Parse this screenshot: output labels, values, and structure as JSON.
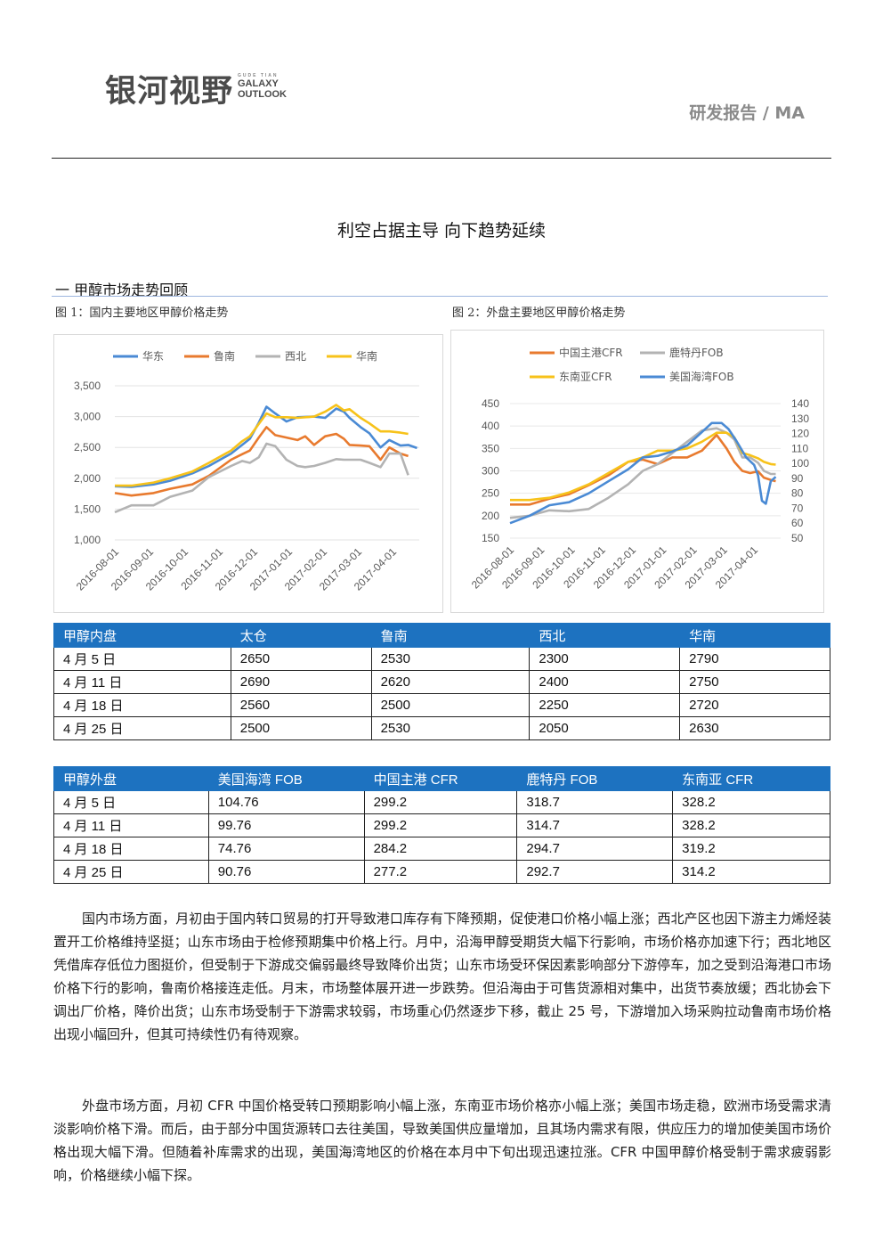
{
  "header": {
    "logo_cn": "银河视野",
    "logo_en_small": "GUDE TIAN",
    "logo_en_1": "GALAXY",
    "logo_en_2": "OUTLOOK",
    "report_tag": "研发报告 / MA"
  },
  "doc": {
    "title": "利空占据主导  向下趋势延续",
    "section_heading": "一  甲醇市场走势回顾",
    "fig1_caption": "图 1：国内主要地区甲醇价格走势",
    "fig2_caption": "图 2：外盘主要地区甲醇价格走势"
  },
  "colors": {
    "blue": "#4a8ad4",
    "orange": "#e87a2e",
    "gray": "#b3b3b3",
    "yellow": "#f7c21a",
    "table_header": "#1d72c0"
  },
  "chart_data": [
    {
      "type": "line",
      "legend": [
        "华东",
        "鲁南",
        "西北",
        "华南"
      ],
      "legend_position": "top",
      "x_ticks": [
        "2016-08-01",
        "2016-09-01",
        "2016-10-01",
        "2016-11-01",
        "2016-12-01",
        "2017-01-01",
        "2017-02-01",
        "2017-03-01",
        "2017-04-01"
      ],
      "y_ticks": [
        "1,000",
        "1,500",
        "2,000",
        "2,500",
        "3,000",
        "3,500"
      ],
      "ylim": [
        1000,
        3500
      ],
      "xlim": [
        0,
        275
      ],
      "series": [
        {
          "name": "华东",
          "x": [
            0,
            15,
            35,
            50,
            70,
            85,
            105,
            115,
            122,
            130,
            137,
            145,
            155,
            165,
            180,
            190,
            200,
            207,
            212,
            222,
            230,
            240,
            248,
            258,
            265,
            273
          ],
          "values": [
            1870,
            1860,
            1900,
            1960,
            2080,
            2200,
            2400,
            2540,
            2640,
            2900,
            3160,
            3050,
            2920,
            2990,
            3000,
            2980,
            3130,
            3080,
            2980,
            2830,
            2730,
            2500,
            2620,
            2530,
            2540,
            2490
          ]
        },
        {
          "name": "鲁南",
          "x": [
            0,
            15,
            35,
            50,
            70,
            85,
            105,
            115,
            122,
            130,
            137,
            145,
            155,
            165,
            172,
            180,
            190,
            200,
            207,
            212,
            222,
            230,
            240,
            248,
            258,
            265
          ],
          "values": [
            1760,
            1720,
            1760,
            1830,
            1900,
            2040,
            2300,
            2390,
            2450,
            2660,
            2830,
            2700,
            2660,
            2620,
            2680,
            2540,
            2680,
            2720,
            2640,
            2540,
            2530,
            2520,
            2300,
            2500,
            2400,
            2360
          ]
        },
        {
          "name": "西北",
          "x": [
            0,
            15,
            35,
            50,
            70,
            85,
            105,
            115,
            122,
            130,
            137,
            145,
            155,
            165,
            172,
            180,
            190,
            200,
            207,
            212,
            222,
            230,
            240,
            248,
            258,
            265
          ],
          "values": [
            1450,
            1560,
            1560,
            1700,
            1800,
            2020,
            2200,
            2280,
            2250,
            2340,
            2560,
            2520,
            2300,
            2200,
            2180,
            2200,
            2250,
            2310,
            2300,
            2300,
            2300,
            2250,
            2180,
            2400,
            2400,
            2050
          ]
        },
        {
          "name": "华南",
          "x": [
            0,
            15,
            35,
            50,
            70,
            85,
            105,
            115,
            122,
            130,
            137,
            145,
            155,
            165,
            180,
            190,
            200,
            207,
            212,
            222,
            230,
            240,
            248,
            258,
            265
          ],
          "values": [
            1880,
            1880,
            1930,
            2000,
            2110,
            2250,
            2450,
            2600,
            2680,
            2880,
            3050,
            2990,
            2990,
            2980,
            3000,
            3080,
            3190,
            3100,
            3120,
            2980,
            2890,
            2760,
            2760,
            2740,
            2720
          ]
        }
      ]
    },
    {
      "type": "line",
      "legend": [
        "中国主港CFR",
        "鹿特丹FOB",
        "东南亚CFR",
        "美国海湾FOB"
      ],
      "legend_position": "top",
      "x_ticks": [
        "2016-08-01",
        "2016-09-01",
        "2016-10-01",
        "2016-11-01",
        "2016-12-01",
        "2017-01-01",
        "2017-02-01",
        "2017-03-01",
        "2017-04-01"
      ],
      "y_ticks_left": [
        "150",
        "200",
        "250",
        "300",
        "350",
        "400",
        "450"
      ],
      "y_ticks_right": [
        "50",
        "60",
        "70",
        "80",
        "90",
        "100",
        "110",
        "120",
        "130",
        "140"
      ],
      "ylim_left": [
        150,
        450
      ],
      "ylim_right": [
        50,
        140
      ],
      "xlim": [
        0,
        275
      ],
      "series": [
        {
          "name": "中国主港CFR",
          "axis": "left",
          "x": [
            0,
            20,
            40,
            60,
            80,
            100,
            120,
            135,
            150,
            165,
            180,
            195,
            210,
            220,
            228,
            236,
            244,
            252,
            258,
            265,
            270
          ],
          "values": [
            225,
            225,
            238,
            248,
            268,
            290,
            320,
            325,
            315,
            330,
            330,
            345,
            380,
            350,
            320,
            300,
            295,
            299,
            285,
            280,
            277
          ]
        },
        {
          "name": "鹿特丹FOB",
          "axis": "left",
          "x": [
            0,
            20,
            40,
            60,
            80,
            100,
            120,
            135,
            150,
            165,
            180,
            195,
            210,
            220,
            228,
            236,
            244,
            252,
            258,
            265,
            270
          ],
          "values": [
            195,
            200,
            212,
            210,
            215,
            240,
            270,
            300,
            315,
            340,
            365,
            390,
            395,
            385,
            370,
            330,
            330,
            318,
            300,
            293,
            293
          ]
        },
        {
          "name": "东南亚CFR",
          "axis": "left",
          "x": [
            0,
            20,
            40,
            60,
            80,
            100,
            120,
            135,
            150,
            165,
            180,
            195,
            210,
            220,
            228,
            236,
            244,
            252,
            258,
            265,
            270
          ],
          "values": [
            235,
            235,
            240,
            252,
            270,
            295,
            320,
            330,
            345,
            345,
            350,
            365,
            385,
            385,
            375,
            340,
            335,
            328,
            320,
            315,
            314
          ]
        },
        {
          "name": "美国海湾FOB",
          "axis": "right",
          "x": [
            0,
            20,
            40,
            60,
            80,
            100,
            120,
            135,
            150,
            165,
            180,
            195,
            205,
            215,
            222,
            230,
            240,
            248,
            252,
            256,
            260,
            265,
            270
          ],
          "values": [
            60,
            65,
            72,
            74,
            80,
            88,
            96,
            104,
            105,
            108,
            112,
            121,
            127,
            127,
            123,
            115,
            104,
            99,
            92,
            75,
            73,
            88,
            91
          ]
        }
      ]
    }
  ],
  "table1": {
    "headers": [
      "甲醇内盘",
      "太仓",
      "鲁南",
      "西北",
      "华南"
    ],
    "rows": [
      [
        "4 月 5 日",
        "2650",
        "2530",
        "2300",
        "2790"
      ],
      [
        "4 月 11 日",
        "2690",
        "2620",
        "2400",
        "2750"
      ],
      [
        "4 月 18 日",
        "2560",
        "2500",
        "2250",
        "2720"
      ],
      [
        "4 月 25 日",
        "2500",
        "2530",
        "2050",
        "2630"
      ]
    ]
  },
  "table2": {
    "headers": [
      "甲醇外盘",
      "美国海湾 FOB",
      "中国主港 CFR",
      "鹿特丹 FOB",
      "东南亚 CFR"
    ],
    "rows": [
      [
        "4 月 5 日",
        "104.76",
        "299.2",
        "318.7",
        "328.2"
      ],
      [
        "4 月 11 日",
        "99.76",
        "299.2",
        "314.7",
        "328.2"
      ],
      [
        "4 月 18 日",
        "74.76",
        "284.2",
        "294.7",
        "319.2"
      ],
      [
        "4 月 25 日",
        "90.76",
        "277.2",
        "292.7",
        "314.2"
      ]
    ]
  },
  "paragraphs": {
    "p1": "国内市场方面，月初由于国内转口贸易的打开导致港口库存有下降预期，促使港口价格小幅上涨；西北产区也因下游主力烯烃装置开工价格维持坚挺；山东市场由于检修预期集中价格上行。月中，沿海甲醇受期货大幅下行影响，市场价格亦加速下行；西北地区凭借库存低位力图挺价，但受制于下游成交偏弱最终导致降价出货；山东市场受环保因素影响部分下游停车，加之受到沿海港口市场价格下行的影响，鲁南价格接连走低。月末，市场整体展开进一步跌势。但沿海由于可售货源相对集中，出货节奏放缓；西北协会下调出厂价格，降价出货；山东市场受制于下游需求较弱，市场重心仍然逐步下移，截止 25 号，下游增加入场采购拉动鲁南市场价格出现小幅回升，但其可持续性仍有待观察。",
    "p2": "外盘市场方面，月初 CFR 中国价格受转口预期影响小幅上涨，东南亚市场价格亦小幅上涨；美国市场走稳，欧洲市场受需求清淡影响价格下滑。而后，由于部分中国货源转口去往美国，导致美国供应量增加，且其场内需求有限，供应压力的增加使美国市场价格出现大幅下滑。但随着补库需求的出现，美国海湾地区的价格在本月中下旬出现迅速拉涨。CFR 中国甲醇价格受制于需求疲弱影响，价格继续小幅下探。"
  }
}
